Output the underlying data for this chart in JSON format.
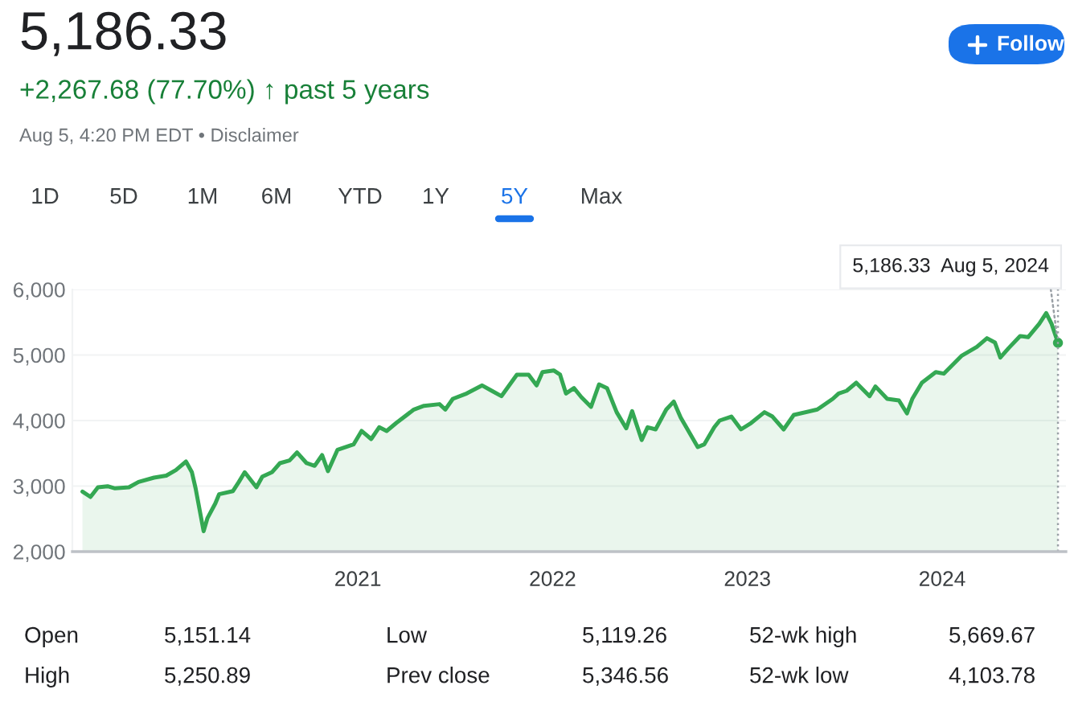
{
  "chart_data": {
    "type": "area",
    "title": "5,186.33",
    "subtitle": "+2,267.68 (77.70%) ↑ past 5 years",
    "x": [
      "2019-08-04",
      "2019-08-19",
      "2019-09-02",
      "2019-09-20",
      "2019-10-04",
      "2019-10-30",
      "2019-11-17",
      "2019-12-16",
      "2020-01-08",
      "2020-01-26",
      "2020-02-14",
      "2020-02-25",
      "2020-03-03",
      "2020-03-18",
      "2020-03-25",
      "2020-04-09",
      "2020-04-16",
      "2020-05-12",
      "2020-05-23",
      "2020-06-03",
      "2020-06-25",
      "2020-07-06",
      "2020-07-24",
      "2020-08-08",
      "2020-08-26",
      "2020-09-09",
      "2020-09-27",
      "2020-10-12",
      "2020-10-26",
      "2020-11-06",
      "2020-11-24",
      "2020-12-24",
      "2021-01-08",
      "2021-01-26",
      "2021-02-10",
      "2021-02-24",
      "2021-03-14",
      "2021-04-16",
      "2021-05-05",
      "2021-06-03",
      "2021-06-14",
      "2021-06-28",
      "2021-07-24",
      "2021-08-22",
      "2021-09-09",
      "2021-09-27",
      "2021-10-26",
      "2021-11-17",
      "2021-12-02",
      "2021-12-13",
      "2022-01-03",
      "2022-01-15",
      "2022-01-26",
      "2022-02-10",
      "2022-02-24",
      "2022-03-14",
      "2022-03-29",
      "2022-04-13",
      "2022-05-01",
      "2022-05-19",
      "2022-05-30",
      "2022-06-17",
      "2022-06-28",
      "2022-07-13",
      "2022-08-02",
      "2022-08-16",
      "2022-08-29",
      "2022-09-30",
      "2022-10-12",
      "2022-10-31",
      "2022-11-10",
      "2022-12-02",
      "2022-12-20",
      "2023-01-08",
      "2023-02-02",
      "2023-02-17",
      "2023-03-10",
      "2023-03-29",
      "2023-05-12",
      "2023-06-10",
      "2023-06-21",
      "2023-07-06",
      "2023-07-24",
      "2023-08-18",
      "2023-08-29",
      "2023-09-20",
      "2023-10-12",
      "2023-10-27",
      "2023-11-06",
      "2023-11-24",
      "2023-12-20",
      "2024-01-04",
      "2024-02-06",
      "2024-03-06",
      "2024-03-25",
      "2024-04-09",
      "2024-04-19",
      "2024-05-05",
      "2024-05-26",
      "2024-06-10",
      "2024-07-01",
      "2024-07-14",
      "2024-07-24",
      "2024-08-05"
    ],
    "series": [
      {
        "color": "#34a853",
        "values": [
          2916,
          2834,
          2982,
          2998,
          2965,
          2982,
          3063,
          3129,
          3160,
          3243,
          3374,
          3211,
          2965,
          2311,
          2507,
          2736,
          2875,
          2924,
          3063,
          3211,
          2982,
          3145,
          3211,
          3350,
          3391,
          3513,
          3350,
          3309,
          3473,
          3227,
          3554,
          3636,
          3841,
          3718,
          3898,
          3841,
          3963,
          4168,
          4225,
          4250,
          4168,
          4331,
          4413,
          4536,
          4454,
          4372,
          4700,
          4700,
          4536,
          4740,
          4765,
          4700,
          4413,
          4495,
          4356,
          4209,
          4552,
          4495,
          4127,
          3881,
          4143,
          3702,
          3898,
          3865,
          4168,
          4290,
          4045,
          3595,
          3636,
          3898,
          4000,
          4061,
          3865,
          3963,
          4127,
          4061,
          3865,
          4086,
          4168,
          4331,
          4413,
          4454,
          4577,
          4372,
          4520,
          4331,
          4307,
          4110,
          4331,
          4577,
          4740,
          4716,
          4986,
          5125,
          5256,
          5190,
          4961,
          5109,
          5289,
          5272,
          5477,
          5640,
          5477,
          5186.33
        ]
      }
    ],
    "xlim": [
      "2019-07-16",
      "2024-08-20"
    ],
    "ylim": [
      2000,
      6000
    ],
    "xticks": [
      {
        "value": "2021-01-01",
        "label": "2021"
      },
      {
        "value": "2022-01-01",
        "label": "2022"
      },
      {
        "value": "2023-01-01",
        "label": "2023"
      },
      {
        "value": "2024-01-01",
        "label": "2024"
      }
    ],
    "yticks": [
      {
        "value": 2000,
        "label": "2,000"
      },
      {
        "value": 3000,
        "label": "3,000"
      },
      {
        "value": 4000,
        "label": "4,000"
      },
      {
        "value": 5000,
        "label": "5,000"
      },
      {
        "value": 6000,
        "label": "6,000"
      }
    ],
    "grid": "y",
    "ref_lines": [
      {
        "axis": "x",
        "value": "2024-08-05",
        "label": null,
        "color": "#9aa0a6",
        "line_style": "dotted"
      }
    ],
    "annotations": [
      "Aug 5, 4:20 PM EDT • Disclaimer",
      "1D",
      "5D",
      "1M",
      "6M",
      "YTD",
      "1Y",
      "5Y",
      "Max",
      "Follow",
      "Open",
      "5,151.14",
      "Low",
      "5,119.26",
      "52-wk high",
      "5,669.67",
      "High",
      "5,250.89",
      "Prev close",
      "5,346.56",
      "52-wk low",
      "4,103.78",
      {
        "text": "5,186.33  Aug 5, 2024",
        "x": "2024-08-05",
        "y": 5186.33
      }
    ]
  }
}
